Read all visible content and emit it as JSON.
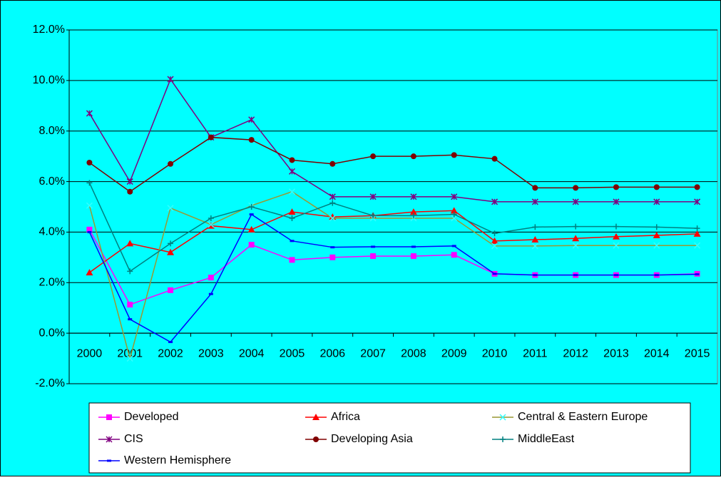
{
  "chart_data": {
    "type": "line",
    "categories": [
      "2000",
      "2001",
      "2002",
      "2003",
      "2004",
      "2005",
      "2006",
      "2007",
      "2008",
      "2009",
      "2010",
      "2011",
      "2012",
      "2013",
      "2014",
      "2015"
    ],
    "series": [
      {
        "name": "Developed",
        "color": "#ff00ff",
        "marker": "square",
        "marker_color": "#ff00ff",
        "values": [
          4.1,
          1.13,
          1.7,
          2.2,
          3.5,
          2.9,
          3.0,
          3.05,
          3.05,
          3.1,
          2.35,
          2.3,
          2.3,
          2.3,
          2.3,
          2.35
        ]
      },
      {
        "name": "Africa",
        "color": "#ff0000",
        "marker": "triangle",
        "marker_color": "#ff0000",
        "values": [
          2.4,
          3.55,
          3.2,
          4.25,
          4.1,
          4.8,
          4.6,
          4.65,
          4.8,
          4.85,
          3.65,
          3.7,
          3.75,
          3.82,
          3.87,
          3.93
        ]
      },
      {
        "name": "Central & Eastern Europe",
        "color": "#999933",
        "marker": "x",
        "marker_color": "#33ffff",
        "values": [
          5.05,
          -1.0,
          4.95,
          4.3,
          5.05,
          5.6,
          4.55,
          4.55,
          4.55,
          4.55,
          3.45,
          3.45,
          3.47,
          3.47,
          3.47,
          3.47
        ]
      },
      {
        "name": "CIS",
        "color": "#800080",
        "marker": "star",
        "marker_color": "#800080",
        "values": [
          8.7,
          6.0,
          10.05,
          7.75,
          8.45,
          6.4,
          5.4,
          5.4,
          5.4,
          5.4,
          5.2,
          5.2,
          5.2,
          5.2,
          5.2,
          5.2
        ]
      },
      {
        "name": "Developing Asia",
        "color": "#800000",
        "marker": "circle",
        "marker_color": "#800000",
        "values": [
          6.75,
          5.6,
          6.7,
          7.75,
          7.65,
          6.85,
          6.7,
          7.0,
          7.0,
          7.05,
          6.9,
          5.75,
          5.75,
          5.78,
          5.78,
          5.78
        ]
      },
      {
        "name": "MiddleEast",
        "color": "#008080",
        "marker": "plus",
        "marker_color": "#008080",
        "values": [
          5.95,
          2.45,
          3.55,
          4.55,
          5.0,
          4.55,
          5.15,
          4.65,
          4.65,
          4.7,
          3.95,
          4.2,
          4.22,
          4.22,
          4.2,
          4.15
        ]
      },
      {
        "name": "Western Hemisphere",
        "color": "#0000ff",
        "marker": "dash",
        "marker_color": "#0000ff",
        "values": [
          4.0,
          0.55,
          -0.35,
          1.55,
          4.7,
          3.65,
          3.4,
          3.42,
          3.42,
          3.45,
          2.35,
          2.3,
          2.3,
          2.3,
          2.3,
          2.33
        ]
      }
    ],
    "ylim": [
      -2,
      12
    ],
    "yticks": [
      {
        "value": -2,
        "label": "-2.0%"
      },
      {
        "value": 0,
        "label": "0.0%"
      },
      {
        "value": 2,
        "label": "2.0%"
      },
      {
        "value": 4,
        "label": "4.0%"
      },
      {
        "value": 6,
        "label": "6.0%"
      },
      {
        "value": 8,
        "label": "8.0%"
      },
      {
        "value": 10,
        "label": "10.0%"
      },
      {
        "value": 12,
        "label": "12.0%"
      }
    ],
    "grid": true,
    "legend": "bottom",
    "background": "#00ffff"
  }
}
